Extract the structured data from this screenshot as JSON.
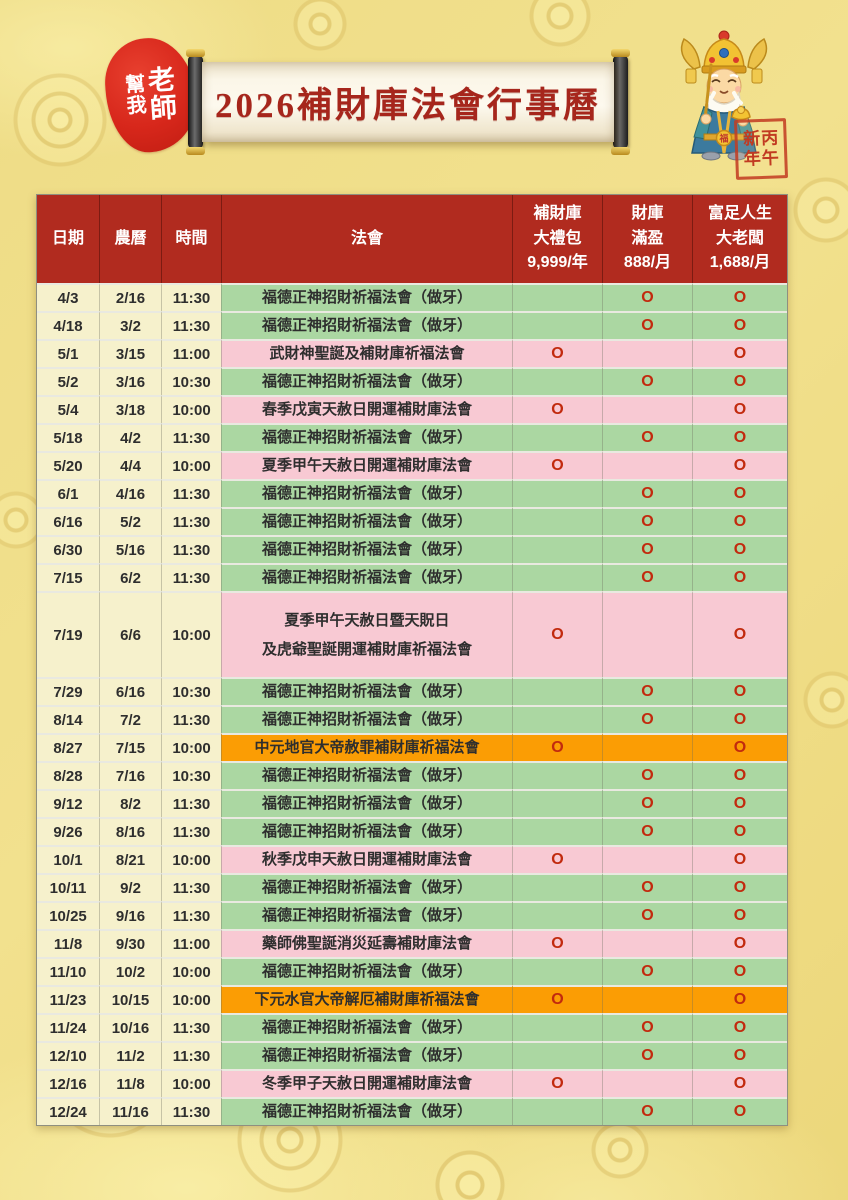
{
  "header": {
    "title": "2026補財庫法會行事曆",
    "left_seal": {
      "columns": [
        [
          "老",
          "師"
        ],
        [
          "幫",
          "我"
        ]
      ]
    },
    "year_seal": {
      "columns": [
        [
          "丙",
          "午"
        ],
        [
          "新",
          "年"
        ]
      ]
    },
    "god_badge": "福"
  },
  "colors": {
    "header_red": "#b12b1f",
    "title_red": "#a6261c",
    "row_green": "#abd7a2",
    "row_pink": "#f8c9d3",
    "row_orange": "#fb9d04",
    "cell_yellow": "#f6f1cc",
    "mark_red": "#c22a0e",
    "background_gold": "#efdc82"
  },
  "table": {
    "mark": "O",
    "columns": [
      {
        "id": "date",
        "lines": [
          "日期"
        ]
      },
      {
        "id": "lunar",
        "lines": [
          "農曆"
        ]
      },
      {
        "id": "time",
        "lines": [
          "時間"
        ]
      },
      {
        "id": "event",
        "lines": [
          "法會"
        ]
      },
      {
        "id": "package",
        "lines": [
          "補財庫",
          "大禮包",
          "9,999/年"
        ]
      },
      {
        "id": "monthly",
        "lines": [
          "財庫",
          "滿盈",
          "888/月"
        ]
      },
      {
        "id": "premium",
        "lines": [
          "富足人生",
          "大老闆",
          "1,688/月"
        ]
      }
    ],
    "rows": [
      {
        "date": "4/3",
        "lunar": "2/16",
        "time": "11:30",
        "event": [
          "福德正神招財祈福法會（做牙）"
        ],
        "color": "green",
        "package": false,
        "monthly": true,
        "premium": true
      },
      {
        "date": "4/18",
        "lunar": "3/2",
        "time": "11:30",
        "event": [
          "福德正神招財祈福法會（做牙）"
        ],
        "color": "green",
        "package": false,
        "monthly": true,
        "premium": true
      },
      {
        "date": "5/1",
        "lunar": "3/15",
        "time": "11:00",
        "event": [
          "武財神聖誕及補財庫祈福法會"
        ],
        "color": "pink",
        "package": true,
        "monthly": false,
        "premium": true
      },
      {
        "date": "5/2",
        "lunar": "3/16",
        "time": "10:30",
        "event": [
          "福德正神招財祈福法會（做牙）"
        ],
        "color": "green",
        "package": false,
        "monthly": true,
        "premium": true
      },
      {
        "date": "5/4",
        "lunar": "3/18",
        "time": "10:00",
        "event": [
          "春季戊寅天赦日開運補財庫法會"
        ],
        "color": "pink",
        "package": true,
        "monthly": false,
        "premium": true
      },
      {
        "date": "5/18",
        "lunar": "4/2",
        "time": "11:30",
        "event": [
          "福德正神招財祈福法會（做牙）"
        ],
        "color": "green",
        "package": false,
        "monthly": true,
        "premium": true
      },
      {
        "date": "5/20",
        "lunar": "4/4",
        "time": "10:00",
        "event": [
          "夏季甲午天赦日開運補財庫法會"
        ],
        "color": "pink",
        "package": true,
        "monthly": false,
        "premium": true
      },
      {
        "date": "6/1",
        "lunar": "4/16",
        "time": "11:30",
        "event": [
          "福德正神招財祈福法會（做牙）"
        ],
        "color": "green",
        "package": false,
        "monthly": true,
        "premium": true
      },
      {
        "date": "6/16",
        "lunar": "5/2",
        "time": "11:30",
        "event": [
          "福德正神招財祈福法會（做牙）"
        ],
        "color": "green",
        "package": false,
        "monthly": true,
        "premium": true
      },
      {
        "date": "6/30",
        "lunar": "5/16",
        "time": "11:30",
        "event": [
          "福德正神招財祈福法會（做牙）"
        ],
        "color": "green",
        "package": false,
        "monthly": true,
        "premium": true
      },
      {
        "date": "7/15",
        "lunar": "6/2",
        "time": "11:30",
        "event": [
          "福德正神招財祈福法會（做牙）"
        ],
        "color": "green",
        "package": false,
        "monthly": true,
        "premium": true
      },
      {
        "date": "7/19",
        "lunar": "6/6",
        "time": "10:00",
        "event": [
          "夏季甲午天赦日暨天貺日",
          "及虎爺聖誕開運補財庫祈福法會"
        ],
        "color": "pink",
        "package": true,
        "monthly": false,
        "premium": true
      },
      {
        "date": "7/29",
        "lunar": "6/16",
        "time": "10:30",
        "event": [
          "福德正神招財祈福法會（做牙）"
        ],
        "color": "green",
        "package": false,
        "monthly": true,
        "premium": true
      },
      {
        "date": "8/14",
        "lunar": "7/2",
        "time": "11:30",
        "event": [
          "福德正神招財祈福法會（做牙）"
        ],
        "color": "green",
        "package": false,
        "monthly": true,
        "premium": true
      },
      {
        "date": "8/27",
        "lunar": "7/15",
        "time": "10:00",
        "event": [
          "中元地官大帝赦罪補財庫祈福法會"
        ],
        "color": "orange",
        "package": true,
        "monthly": false,
        "premium": true
      },
      {
        "date": "8/28",
        "lunar": "7/16",
        "time": "10:30",
        "event": [
          "福德正神招財祈福法會（做牙）"
        ],
        "color": "green",
        "package": false,
        "monthly": true,
        "premium": true
      },
      {
        "date": "9/12",
        "lunar": "8/2",
        "time": "11:30",
        "event": [
          "福德正神招財祈福法會（做牙）"
        ],
        "color": "green",
        "package": false,
        "monthly": true,
        "premium": true
      },
      {
        "date": "9/26",
        "lunar": "8/16",
        "time": "11:30",
        "event": [
          "福德正神招財祈福法會（做牙）"
        ],
        "color": "green",
        "package": false,
        "monthly": true,
        "premium": true
      },
      {
        "date": "10/1",
        "lunar": "8/21",
        "time": "10:00",
        "event": [
          "秋季戊申天赦日開運補財庫法會"
        ],
        "color": "pink",
        "package": true,
        "monthly": false,
        "premium": true
      },
      {
        "date": "10/11",
        "lunar": "9/2",
        "time": "11:30",
        "event": [
          "福德正神招財祈福法會（做牙）"
        ],
        "color": "green",
        "package": false,
        "monthly": true,
        "premium": true
      },
      {
        "date": "10/25",
        "lunar": "9/16",
        "time": "11:30",
        "event": [
          "福德正神招財祈福法會（做牙）"
        ],
        "color": "green",
        "package": false,
        "monthly": true,
        "premium": true
      },
      {
        "date": "11/8",
        "lunar": "9/30",
        "time": "11:00",
        "event": [
          "藥師佛聖誕消災延壽補財庫法會"
        ],
        "color": "pink",
        "package": true,
        "monthly": false,
        "premium": true
      },
      {
        "date": "11/10",
        "lunar": "10/2",
        "time": "10:00",
        "event": [
          "福德正神招財祈福法會（做牙）"
        ],
        "color": "green",
        "package": false,
        "monthly": true,
        "premium": true
      },
      {
        "date": "11/23",
        "lunar": "10/15",
        "time": "10:00",
        "event": [
          "下元水官大帝解厄補財庫祈福法會"
        ],
        "color": "orange",
        "package": true,
        "monthly": false,
        "premium": true
      },
      {
        "date": "11/24",
        "lunar": "10/16",
        "time": "11:30",
        "event": [
          "福德正神招財祈福法會（做牙）"
        ],
        "color": "green",
        "package": false,
        "monthly": true,
        "premium": true
      },
      {
        "date": "12/10",
        "lunar": "11/2",
        "time": "11:30",
        "event": [
          "福德正神招財祈福法會（做牙）"
        ],
        "color": "green",
        "package": false,
        "monthly": true,
        "premium": true
      },
      {
        "date": "12/16",
        "lunar": "11/8",
        "time": "10:00",
        "event": [
          "冬季甲子天赦日開運補財庫法會"
        ],
        "color": "pink",
        "package": true,
        "monthly": false,
        "premium": true
      },
      {
        "date": "12/24",
        "lunar": "11/16",
        "time": "11:30",
        "event": [
          "福德正神招財祈福法會（做牙）"
        ],
        "color": "green",
        "package": false,
        "monthly": true,
        "premium": true
      }
    ]
  }
}
